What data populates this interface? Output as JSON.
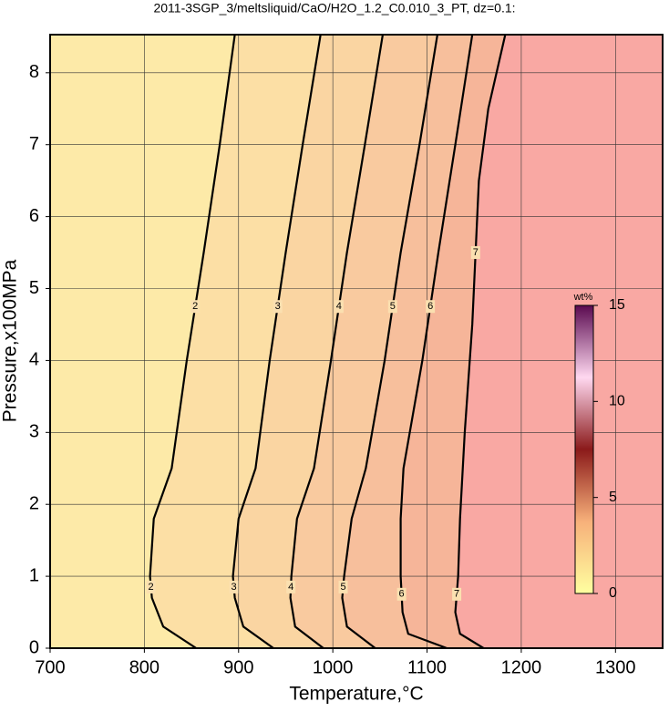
{
  "chart_data": {
    "type": "contour",
    "title": "2011-3SGP_3/meltsliquid/CaO/H2O_1.2_C0.010_3_PT, dz=0.1:",
    "x_label": "Temperature,°C",
    "y_label": "Pressure,x100MPa",
    "xlim": [
      700,
      1350
    ],
    "ylim": [
      0,
      8.53
    ],
    "xticks": [
      700,
      800,
      900,
      1000,
      1100,
      1200,
      1300
    ],
    "yticks": [
      0,
      1,
      2,
      3,
      4,
      5,
      6,
      7,
      8
    ],
    "grid": true,
    "contours": [
      {
        "level": 2,
        "x": [
          855,
          820,
          808,
          806,
          810,
          829,
          845,
          863,
          880,
          896
        ],
        "y": [
          0,
          0.3,
          0.7,
          1,
          1.8,
          2.5,
          4,
          5.5,
          7,
          8.53
        ]
      },
      {
        "level": 3,
        "x": [
          937,
          905,
          896,
          894,
          900,
          918,
          933,
          950,
          968,
          987
        ],
        "y": [
          0,
          0.3,
          0.7,
          1,
          1.8,
          2.5,
          4,
          5.5,
          7,
          8.53
        ]
      },
      {
        "level": 4,
        "x": [
          990,
          960,
          955,
          956,
          962,
          980,
          998,
          1015,
          1034,
          1053
        ],
        "y": [
          0,
          0.3,
          0.7,
          1,
          1.8,
          2.5,
          4,
          5.5,
          7,
          8.53
        ]
      },
      {
        "level": 5,
        "x": [
          1045,
          1015,
          1010,
          1012,
          1020,
          1035,
          1055,
          1072,
          1092,
          1111
        ],
        "y": [
          0,
          0.3,
          0.7,
          1,
          1.8,
          2.5,
          4,
          5.5,
          7,
          8.53
        ]
      },
      {
        "level": 6,
        "x": [
          1121,
          1080,
          1074,
          1072,
          1072,
          1075,
          1095,
          1112,
          1130,
          1148
        ],
        "y": [
          0,
          0.2,
          0.5,
          1,
          1.8,
          2.5,
          4,
          5.5,
          7,
          8.53
        ]
      },
      {
        "level": 7,
        "x": [
          1160,
          1135,
          1130,
          1133,
          1135,
          1140,
          1148,
          1155,
          1165,
          1183
        ],
        "y": [
          0,
          0.2,
          0.5,
          1,
          1.8,
          3,
          4.5,
          6.5,
          7.5,
          8.53
        ]
      }
    ],
    "colorbar": {
      "label": "wt%",
      "lim": [
        0,
        15
      ],
      "ticks": [
        0,
        5,
        10,
        15
      ]
    }
  }
}
